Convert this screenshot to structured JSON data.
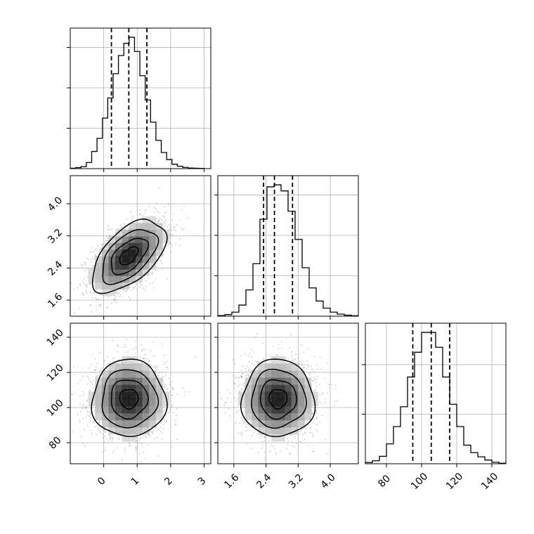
{
  "chart_data": {
    "type": "corner",
    "parameters": [
      {
        "range": [
          -1,
          3.2
        ],
        "ticks": [
          0,
          1,
          2,
          3
        ],
        "tick_labels": [
          "0",
          "1",
          "2",
          "3"
        ],
        "quantiles": [
          0.23,
          0.75,
          1.29
        ],
        "hist_bins": [
          -1.0,
          -0.84,
          -0.68,
          -0.52,
          -0.36,
          -0.2,
          -0.04,
          0.12,
          0.28,
          0.44,
          0.6,
          0.76,
          0.92,
          1.08,
          1.24,
          1.4,
          1.56,
          1.72,
          1.88,
          2.04,
          2.2,
          2.36,
          2.52,
          2.68,
          2.84,
          3.0
        ],
        "hist_counts": [
          2,
          5,
          10,
          30,
          85,
          150,
          250,
          350,
          470,
          560,
          620,
          650,
          580,
          460,
          340,
          230,
          140,
          80,
          45,
          22,
          12,
          6,
          3,
          2,
          1
        ],
        "mean": 0.75,
        "sd": 0.55
      },
      {
        "range": [
          1.2,
          4.7
        ],
        "ticks": [
          1.6,
          2.4,
          3.2,
          4.0
        ],
        "tick_labels": [
          "1.6",
          "2.4",
          "3.2",
          "4.0"
        ],
        "quantiles": [
          2.34,
          2.61,
          3.06
        ],
        "hist_bins": [
          1.2,
          1.375,
          1.55,
          1.725,
          1.9,
          2.075,
          2.25,
          2.425,
          2.6,
          2.775,
          2.95,
          3.125,
          3.3,
          3.475,
          3.65,
          3.825,
          4.0,
          4.175,
          4.35,
          4.525,
          4.7
        ],
        "hist_counts": [
          3,
          8,
          20,
          55,
          130,
          260,
          480,
          640,
          650,
          620,
          520,
          380,
          240,
          140,
          75,
          40,
          20,
          10,
          5,
          2
        ],
        "mean": 2.7,
        "sd": 0.45
      },
      {
        "range": [
          68,
          148
        ],
        "ticks": [
          80,
          100,
          120,
          140
        ],
        "tick_labels": [
          "80",
          "100",
          "120",
          "140"
        ],
        "quantiles": [
          95,
          105.5,
          116
        ],
        "hist_bins": [
          68,
          72,
          76,
          80,
          84,
          88,
          92,
          96,
          100,
          104,
          108,
          112,
          116,
          120,
          124,
          128,
          132,
          136,
          140,
          144,
          148
        ],
        "hist_counts": [
          5,
          12,
          30,
          80,
          150,
          230,
          350,
          450,
          530,
          530,
          470,
          350,
          240,
          150,
          75,
          45,
          28,
          15,
          6,
          2
        ],
        "mean": 105,
        "sd": 11
      },
      {
        "correlations": {
          "p0_p1": 0.55,
          "p0_p2": 0.0,
          "p1_p2": 0.0
        }
      }
    ],
    "title": "",
    "grid": true
  }
}
